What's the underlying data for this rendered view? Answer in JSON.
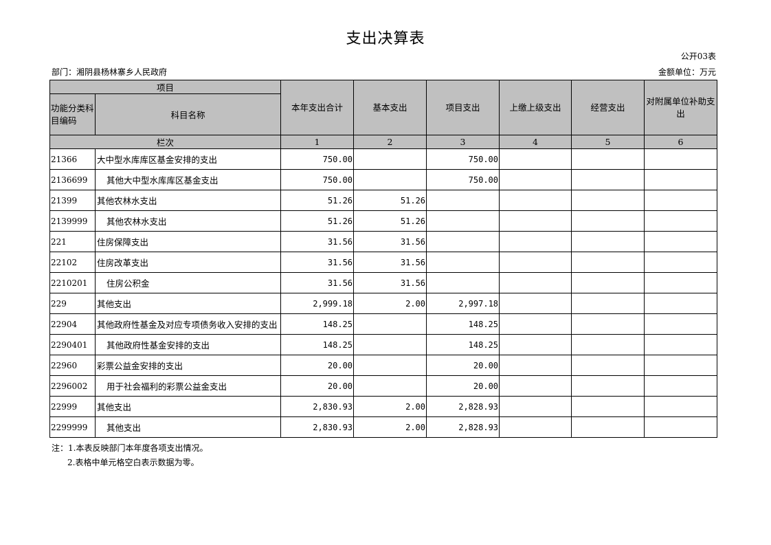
{
  "title": "支出决算表",
  "form_no": "公开03表",
  "department": "部门：湘阴县杨林寨乡人民政府",
  "unit": "金额单位：万元",
  "header": {
    "item": "项目",
    "code": "功能分类科目编码",
    "name": "科目名称",
    "columns": [
      "本年支出合计",
      "基本支出",
      "项目支出",
      "上缴上级支出",
      "经营支出",
      "对附属单位补助支出"
    ],
    "row_label": "栏次",
    "column_numbers": [
      "1",
      "2",
      "3",
      "4",
      "5",
      "6"
    ]
  },
  "rows": [
    {
      "code": "21366",
      "name": "大中型水库库区基金安排的支出",
      "indent": false,
      "v": [
        "750.00",
        "",
        "750.00",
        "",
        "",
        ""
      ]
    },
    {
      "code": "2136699",
      "name": "其他大中型水库库区基金支出",
      "indent": true,
      "v": [
        "750.00",
        "",
        "750.00",
        "",
        "",
        ""
      ]
    },
    {
      "code": "21399",
      "name": "其他农林水支出",
      "indent": false,
      "v": [
        "51.26",
        "51.26",
        "",
        "",
        "",
        ""
      ]
    },
    {
      "code": "2139999",
      "name": "其他农林水支出",
      "indent": true,
      "v": [
        "51.26",
        "51.26",
        "",
        "",
        "",
        ""
      ]
    },
    {
      "code": "221",
      "name": "住房保障支出",
      "indent": false,
      "v": [
        "31.56",
        "31.56",
        "",
        "",
        "",
        ""
      ]
    },
    {
      "code": "22102",
      "name": "住房改革支出",
      "indent": false,
      "v": [
        "31.56",
        "31.56",
        "",
        "",
        "",
        ""
      ]
    },
    {
      "code": "2210201",
      "name": "住房公积金",
      "indent": true,
      "v": [
        "31.56",
        "31.56",
        "",
        "",
        "",
        ""
      ]
    },
    {
      "code": "229",
      "name": "其他支出",
      "indent": false,
      "v": [
        "2,999.18",
        "2.00",
        "2,997.18",
        "",
        "",
        ""
      ]
    },
    {
      "code": "22904",
      "name": "其他政府性基金及对应专项债务收入安排的支出",
      "indent": false,
      "v": [
        "148.25",
        "",
        "148.25",
        "",
        "",
        ""
      ]
    },
    {
      "code": "2290401",
      "name": "其他政府性基金安排的支出",
      "indent": true,
      "v": [
        "148.25",
        "",
        "148.25",
        "",
        "",
        ""
      ]
    },
    {
      "code": "22960",
      "name": "彩票公益金安排的支出",
      "indent": false,
      "v": [
        "20.00",
        "",
        "20.00",
        "",
        "",
        ""
      ]
    },
    {
      "code": "2296002",
      "name": "用于社会福利的彩票公益金支出",
      "indent": true,
      "v": [
        "20.00",
        "",
        "20.00",
        "",
        "",
        ""
      ]
    },
    {
      "code": "22999",
      "name": "其他支出",
      "indent": false,
      "v": [
        "2,830.93",
        "2.00",
        "2,828.93",
        "",
        "",
        ""
      ]
    },
    {
      "code": "2299999",
      "name": "其他支出",
      "indent": true,
      "v": [
        "2,830.93",
        "2.00",
        "2,828.93",
        "",
        "",
        ""
      ]
    }
  ],
  "notes": [
    "注：1.本表反映部门本年度各项支出情况。",
    "2.表格中单元格空白表示数据为零。"
  ]
}
